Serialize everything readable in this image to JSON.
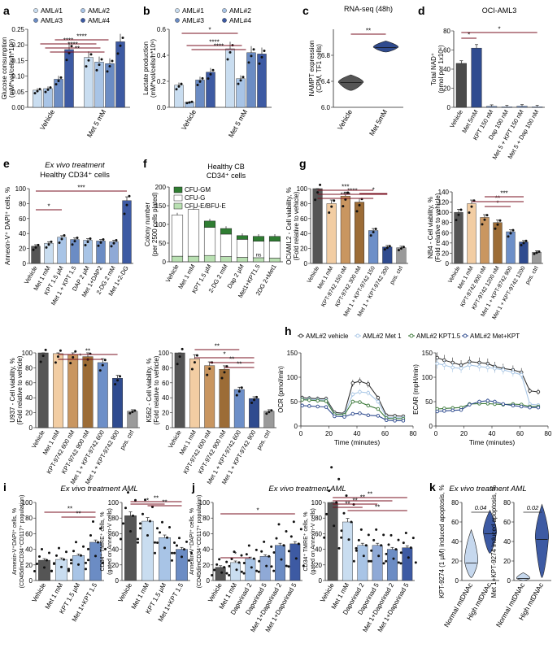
{
  "figure": {
    "panel_letters": [
      "a",
      "b",
      "c",
      "d",
      "e",
      "f",
      "g",
      "h",
      "i",
      "j",
      "k"
    ],
    "ex_vivo_aml": "Ex vivo treatment AML",
    "ex_vivo_cd34_1": "Ex vivo treatment",
    "ex_vivo_cd34_2": "Healthy CD34⁺ cells"
  },
  "colors": {
    "aml1": "#c9ddf0",
    "aml2": "#a8c4e6",
    "aml3": "#6b8cc4",
    "aml4": "#3d5aa3",
    "vehicle_dark": "#4b4b4b",
    "met5": "#2f4b8f",
    "k_light": "#c6d8ee",
    "k_dark": "#3d5aa3",
    "cfu_gm": "#2f7d32",
    "cfu_g": "#ffffff",
    "cfu_e": "#b9e0b2",
    "g_veh": "#555555",
    "g_met": "#f2cda3",
    "g_kpt1": "#c99660",
    "g_kpt2": "#9c6c36",
    "g_comb1": "#6d8fc8",
    "g_comb2": "#2f4b8f",
    "g_pos": "#9a9a9a",
    "sig": "#7a1020",
    "h_veh": "#333333",
    "h_met": "#a9c7e6",
    "h_kpt": "#3d7a3a",
    "h_mk": "#2f4b8f"
  },
  "chart_data": [
    {
      "id": "a",
      "type": "bar",
      "letter": "a",
      "ylabel": "Glucose consumption (mM*vol/cells/h*10⁶)",
      "ylim": [
        0,
        0.25
      ],
      "yticks": [
        "0.00",
        "0.05",
        "0.10",
        "0.15",
        "0.20",
        "0.25"
      ],
      "categories": [
        "Vehicle",
        "Met 5 mM"
      ],
      "legend": [
        "AML#1",
        "AML#2",
        "AML#3",
        "AML#4"
      ],
      "series": [
        {
          "name": "AML#1",
          "values": [
            0.055,
            0.16
          ]
        },
        {
          "name": "AML#2",
          "values": [
            0.06,
            0.145
          ]
        },
        {
          "name": "AML#3",
          "values": [
            0.09,
            0.14
          ]
        },
        {
          "name": "AML#4",
          "values": [
            0.185,
            0.21
          ]
        }
      ],
      "significance": [
        "****",
        "****",
        "**",
        "****"
      ]
    },
    {
      "id": "b",
      "type": "bar",
      "letter": "b",
      "ylabel": "Lactate production (mM*vol/cells/h*10⁶)",
      "ylim": [
        0,
        0.6
      ],
      "yticks": [
        "0.0",
        "0.2",
        "0.4",
        "0.6"
      ],
      "categories": [
        "Vehicle",
        "Met 5 mM"
      ],
      "legend": [
        "AML#1",
        "AML#2",
        "AML#3",
        "AML#4"
      ],
      "series": [
        {
          "name": "AML#1",
          "values": [
            0.17,
            0.45
          ]
        },
        {
          "name": "AML#2",
          "values": [
            0.04,
            0.22
          ]
        },
        {
          "name": "AML#3",
          "values": [
            0.21,
            0.42
          ]
        },
        {
          "name": "AML#4",
          "values": [
            0.27,
            0.41
          ]
        }
      ],
      "significance": [
        "*",
        "****",
        "****"
      ]
    },
    {
      "id": "c",
      "type": "violin",
      "letter": "c",
      "title": "RNA-seq (48h)",
      "ylabel": "NAMPT expression (CPM, TF1 cells)",
      "ylim": [
        6.0,
        7.2
      ],
      "yticks": [
        "6.0",
        "6.4",
        "6.8"
      ],
      "categories": [
        "Vehicle",
        "Met 5mM"
      ],
      "medians": [
        6.38,
        6.92
      ],
      "ranges": [
        [
          6.26,
          6.5
        ],
        [
          6.85,
          7.02
        ]
      ],
      "significance": [
        "**"
      ]
    },
    {
      "id": "d",
      "type": "bar",
      "letter": "d",
      "title": "OCI-AML3",
      "ylabel": "Total NAD⁺ (pmol per 1x10⁶)",
      "ylim": [
        0,
        80
      ],
      "yticks": [
        "0",
        "20",
        "40",
        "60",
        "80"
      ],
      "categories": [
        "Vehicle",
        "Met 5mM",
        "KPT 150 nM",
        "Dap 100 nM",
        "Met 5 + KPT 150 nM",
        "Met 5 + Dap 100 nM"
      ],
      "values": [
        46,
        62,
        1,
        0.5,
        1.2,
        0.5
      ],
      "significance": [
        "*",
        "*"
      ]
    },
    {
      "id": "e",
      "type": "bar",
      "letter": "e",
      "ylabel": "Annexin-V⁺ DAPI⁺ cells, %",
      "ylim": [
        0,
        100
      ],
      "yticks": [
        "0",
        "20",
        "40",
        "60",
        "80",
        "100"
      ],
      "categories": [
        "Vehicle",
        "Met 1 mM",
        "KPT 1.5 µM",
        "Met 1 + KPT 1.5",
        "DAP 2 µM",
        "Met 1+DAP2",
        "2-DG 2 mM",
        "Met 1+2-DG"
      ],
      "values": [
        23,
        27,
        35,
        32,
        31,
        30,
        29,
        84
      ],
      "significance": [
        "*",
        "***"
      ]
    },
    {
      "id": "f",
      "type": "stacked_bar",
      "letter": "f",
      "title1": "Healthy CB",
      "title2": "CD34⁺ cells",
      "ylabel": "Colony number (per 2500 cells plated)",
      "ylim": [
        0,
        200
      ],
      "yticks": [
        "0",
        "50",
        "100",
        "150",
        "200"
      ],
      "categories": [
        "Vehicle",
        "Met 1 mM",
        "KPT 1.5 µM",
        "2-DG 2 mM",
        "Dap 2 µM",
        "Met1+KPT1.5",
        "2DG 2+Met1"
      ],
      "series": [
        {
          "name": "CFU-E/BFU-E",
          "values": [
            15,
            15,
            17,
            14,
            12,
            11,
            10
          ]
        },
        {
          "name": "CFU-G",
          "values": [
            110,
            125,
            75,
            60,
            48,
            44,
            45
          ]
        },
        {
          "name": "CFU-GM",
          "values": [
            0,
            0,
            17,
            15,
            10,
            13,
            13
          ]
        }
      ],
      "legend": [
        "CFU-GM",
        "CFU-G",
        "CFU-E/BFU-E"
      ],
      "annotation": "ns"
    },
    {
      "id": "g1",
      "type": "bar",
      "letter": "g",
      "ylabel": "OCIAML2 - Cell viability, % (Fold relative to vehicle)",
      "ylim": [
        0,
        100
      ],
      "yticks": [
        "0",
        "20",
        "40",
        "60",
        "80",
        "100"
      ],
      "categories": [
        "Vehicle",
        "Met 1 mM",
        "KPT-9742 150 nM",
        "KPT-9742 300 nM",
        "Met 1 + KPT-9742 150",
        "Met 1 + KPT-9742 300",
        "pos. ctrl"
      ],
      "values": [
        100,
        80,
        90,
        82,
        44,
        22,
        21
      ],
      "significance": [
        "****",
        "****",
        "***",
        "*"
      ]
    },
    {
      "id": "g2",
      "type": "bar",
      "ylabel": "NB4 - Cell viability, % (Fold relative to vehicle)",
      "ylim": [
        0,
        140
      ],
      "yticks": [
        "0",
        "20",
        "40",
        "60",
        "80",
        "100",
        "120",
        "140"
      ],
      "categories": [
        "Vehicle",
        "Met 1 mM",
        "KPT-9742 900 nM",
        "KPT-9742 1200 nM",
        "Met 1 + KPT-9742 900",
        "Met 1 + KPT-9742 1200",
        "pos. ctrl"
      ],
      "values": [
        100,
        117,
        90,
        80,
        62,
        42,
        22
      ],
      "significance": [
        "*",
        "**",
        "***"
      ]
    },
    {
      "id": "g3",
      "type": "bar",
      "ylabel": "U937 - Cell viability, % (Fold relative to vehicle)",
      "ylim": [
        0,
        100
      ],
      "yticks": [
        "0",
        "20",
        "40",
        "60",
        "80",
        "100"
      ],
      "categories": [
        "Vehicle",
        "Met 1 mM",
        "KPT-9742 600 nM",
        "KPT-9742 900 nM",
        "Met 1 + KPT-9742 600",
        "Met 1 + KPT-9742 900",
        "pos. ctrl"
      ],
      "values": [
        100,
        99,
        98,
        95,
        87,
        66,
        22
      ],
      "significance": [
        "*",
        "**"
      ]
    },
    {
      "id": "g4",
      "type": "bar",
      "ylabel": "K562 - Cell viability, % (Fold relative to vehicle)",
      "ylim": [
        0,
        100
      ],
      "yticks": [
        "0",
        "20",
        "40",
        "60",
        "80",
        "100"
      ],
      "categories": [
        "Vehicle",
        "Met 1 mM",
        "KPT-9742 600 nM",
        "KPT-9742 900 nM",
        "Met 1 + KPT-9742 600",
        "Met 1 + KPT-9742 900",
        "pos. ctrl"
      ],
      "values": [
        100,
        92,
        83,
        78,
        51,
        39,
        22
      ],
      "significance": [
        "**",
        "*",
        "**",
        "**"
      ]
    },
    {
      "id": "h1",
      "type": "line",
      "letter": "h",
      "ylabel": "OCR (pmol/min)",
      "xlabel": "Time (minutes)",
      "ylim": [
        0,
        150
      ],
      "yticks": [
        "0",
        "50",
        "100",
        "150"
      ],
      "xlim": [
        0,
        80
      ],
      "xticks": [
        "0",
        "20",
        "40",
        "60",
        "80"
      ],
      "legend": [
        "AML#2 vehicle",
        "AML#2 Met 1",
        "AML#2 KPT1.5",
        "AML#2 Met+KPT"
      ],
      "x": [
        1,
        6,
        12,
        18,
        24,
        31,
        37,
        42,
        48,
        55,
        61,
        67,
        73
      ],
      "series": [
        {
          "name": "AML#2 vehicle",
          "values": [
            58,
            57,
            56,
            56,
            28,
            26,
            88,
            92,
            86,
            58,
            22,
            21,
            20
          ]
        },
        {
          "name": "AML#2 Met 1",
          "values": [
            55,
            55,
            54,
            53,
            25,
            24,
            65,
            70,
            68,
            50,
            18,
            17,
            17
          ]
        },
        {
          "name": "AML#2 KPT1.5",
          "values": [
            54,
            53,
            52,
            51,
            24,
            23,
            50,
            49,
            42,
            35,
            16,
            15,
            15
          ]
        },
        {
          "name": "AML#2 Met+KPT",
          "values": [
            42,
            41,
            40,
            39,
            20,
            19,
            25,
            26,
            22,
            21,
            12,
            11,
            11
          ]
        }
      ]
    },
    {
      "id": "h2",
      "type": "line",
      "ylabel": "ECAR (mpH/min)",
      "xlabel": "Time (minutes)",
      "ylim": [
        0,
        150
      ],
      "yticks": [
        "0",
        "50",
        "100",
        "150"
      ],
      "xlim": [
        0,
        80
      ],
      "xticks": [
        "0",
        "20",
        "40",
        "60",
        "80"
      ],
      "x": [
        1,
        6,
        12,
        18,
        24,
        31,
        37,
        42,
        48,
        55,
        61,
        67,
        73
      ],
      "series": [
        {
          "name": "AML#2 vehicle",
          "values": [
            140,
            135,
            130,
            125,
            132,
            130,
            128,
            122,
            118,
            115,
            110,
            72,
            70
          ]
        },
        {
          "name": "AML#2 Met 1",
          "values": [
            128,
            125,
            120,
            118,
            125,
            122,
            120,
            118,
            115,
            110,
            105,
            45,
            43
          ]
        },
        {
          "name": "AML#2 KPT1.5",
          "values": [
            35,
            36,
            37,
            38,
            45,
            46,
            46,
            45,
            44,
            45,
            44,
            40,
            40
          ]
        },
        {
          "name": "AML#2 Met+KPT",
          "values": [
            30,
            31,
            32,
            33,
            44,
            50,
            52,
            50,
            45,
            42,
            40,
            38,
            38
          ]
        }
      ]
    },
    {
      "id": "i1",
      "type": "bar",
      "letter": "i",
      "ylabel": "Annexin-V⁺DAPI⁺ cells, % (CD45dimCD34⁺CD117⁺ population)",
      "ylim": [
        0,
        100
      ],
      "yticks": [
        "0",
        "20",
        "40",
        "60",
        "80",
        "100"
      ],
      "categories": [
        "Vehicle",
        "Met 1 mM",
        "KPT 1.5 µM",
        "Met 1+KPT 1.5"
      ],
      "values": [
        26,
        27,
        32,
        49
      ],
      "significance": [
        "**",
        "**"
      ]
    },
    {
      "id": "i2",
      "type": "bar",
      "ylabel": "CD34⁺ TMRE⁺ cells, % (gated on Annexin-V cells)",
      "ylim": [
        0,
        100
      ],
      "yticks": [
        "0",
        "20",
        "40",
        "60",
        "80",
        "100"
      ],
      "categories": [
        "Vehicle",
        "Met 1 mM",
        "KPT 1.5 µM",
        "Met 1+KPT 1.5"
      ],
      "values": [
        83,
        76,
        55,
        40
      ],
      "significance": [
        "**",
        "**",
        "*"
      ]
    },
    {
      "id": "j1",
      "type": "bar",
      "letter": "j",
      "ylabel": "Annexin-V⁺DAPI⁺ cells, % (CD45dimCD34⁺CD117⁺ population)",
      "ylim": [
        0,
        100
      ],
      "yticks": [
        "0",
        "20",
        "40",
        "60",
        "80",
        "100"
      ],
      "categories": [
        "Vehicle",
        "Met 1 mM",
        "Daporinad 2",
        "Daporinad 5",
        "Met 1+Daporinad 2",
        "Met 1+Daporinad 5"
      ],
      "values": [
        17,
        23,
        28,
        31,
        45,
        47
      ],
      "significance": [
        "*",
        "*"
      ]
    },
    {
      "id": "j2",
      "type": "bar",
      "ylabel": "CD34⁺ TMRE⁺ cells, % (gated on Annexin-V cells)",
      "ylim": [
        0,
        100
      ],
      "yticks": [
        "0",
        "20",
        "40",
        "60",
        "80",
        "100"
      ],
      "categories": [
        "Vehicle",
        "Met 1 mM",
        "Daporinad 2",
        "Daporinad 5",
        "Met 1+Daporinad 2",
        "Met 1+Daporinad 5"
      ],
      "values": [
        100,
        75,
        45,
        45,
        40,
        42
      ],
      "significance": [
        "**",
        "**",
        "**",
        "**",
        "**"
      ]
    },
    {
      "id": "k1",
      "type": "violin",
      "letter": "k",
      "ylabel": "KPT-9274 (1 µM) induced apoptosis, %",
      "ylim": [
        0,
        80
      ],
      "yticks": [
        "0",
        "20",
        "40",
        "60",
        "80"
      ],
      "categories": [
        "Normal mtDNAc",
        "High mtDNAc"
      ],
      "medians": [
        18,
        48
      ],
      "ranges": [
        [
          3,
          52
        ],
        [
          28,
          72
        ]
      ],
      "pvalue": "0.04"
    },
    {
      "id": "k2",
      "type": "violin",
      "ylabel": "Met 1+KPT-9274 induced apoptosis, %",
      "ylim": [
        0,
        80
      ],
      "yticks": [
        "0",
        "20",
        "40",
        "60",
        "80"
      ],
      "categories": [
        "Normal mtDNAc",
        "High mtDNAc"
      ],
      "medians": [
        2,
        42
      ],
      "ranges": [
        [
          0,
          8
        ],
        [
          3,
          78
        ]
      ],
      "pvalue": "0.02"
    }
  ]
}
